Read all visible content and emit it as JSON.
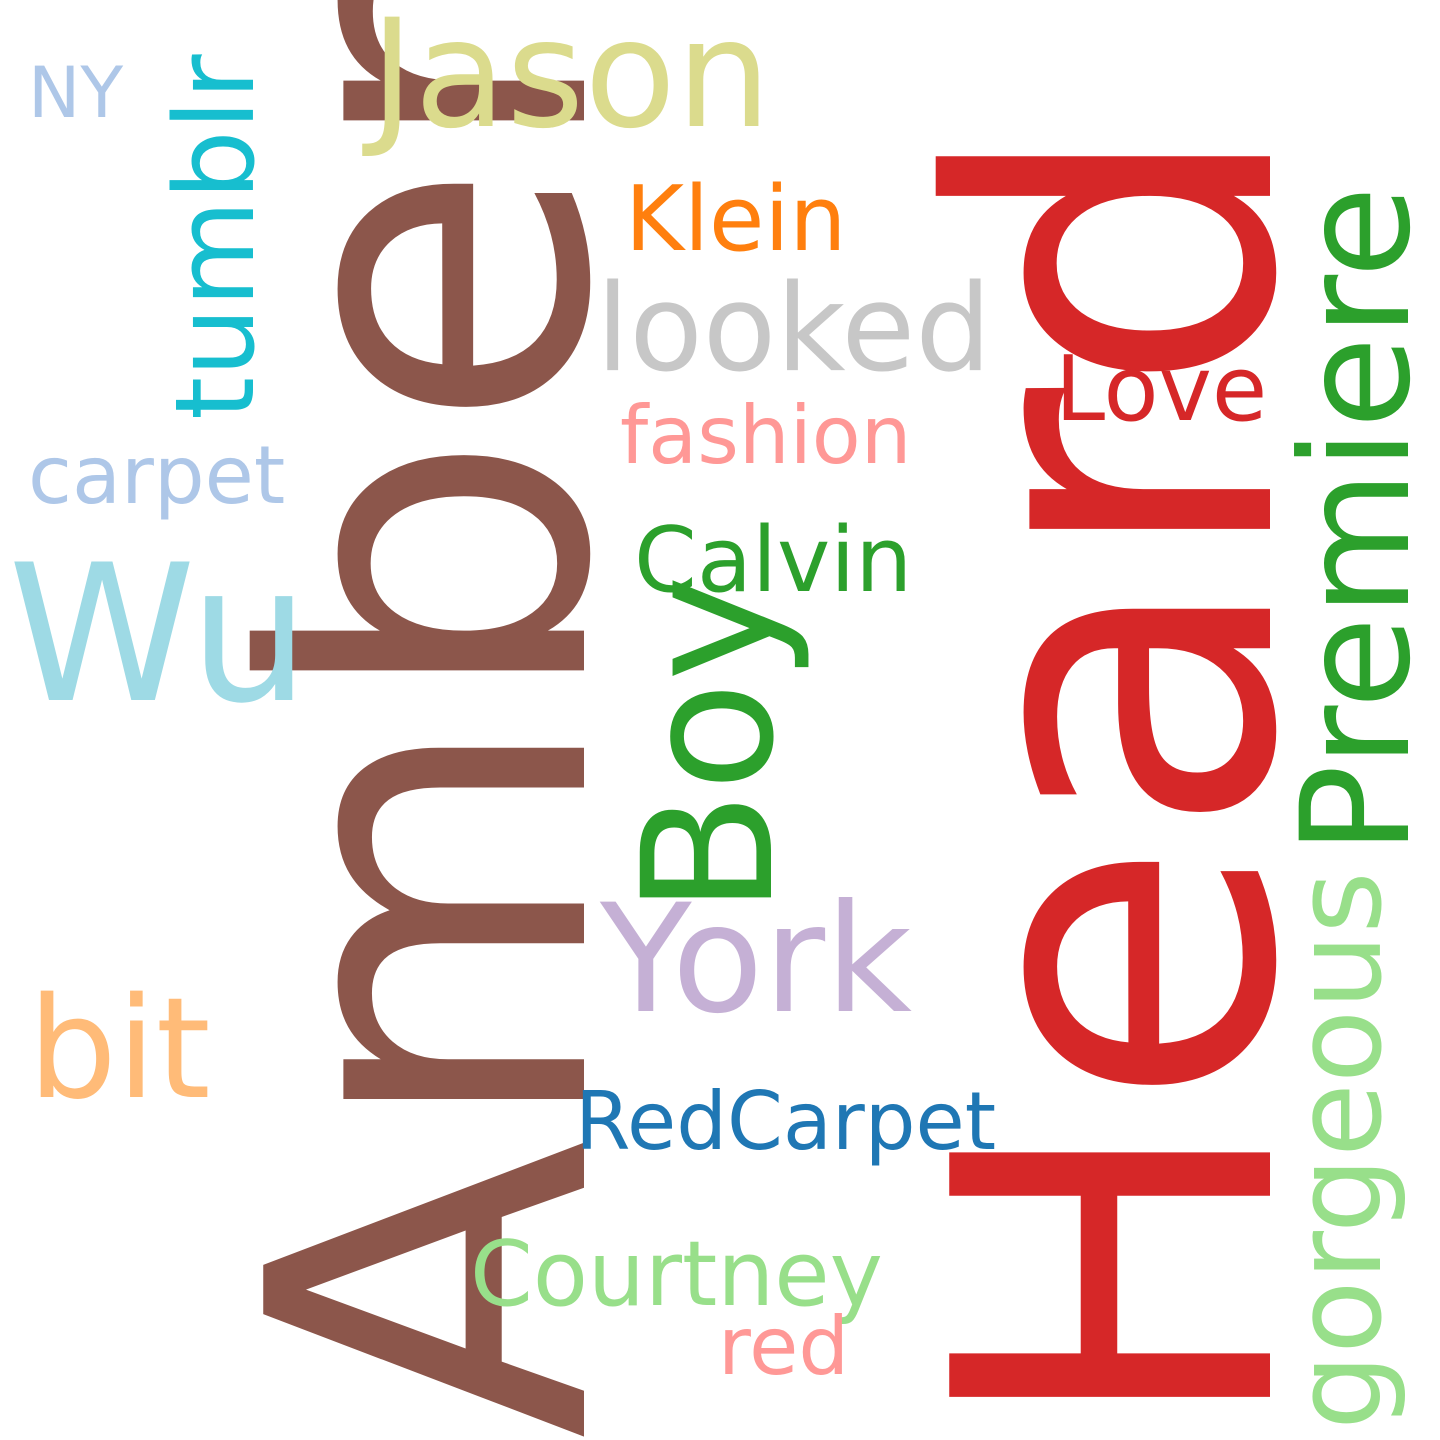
{
  "words": {
    "amber": {
      "text": "Amber",
      "color": "#8c564b"
    },
    "heard": {
      "text": "Heard",
      "color": "#d62728"
    },
    "jason": {
      "text": "Jason",
      "color": "#dbdb8d"
    },
    "premiere": {
      "text": "Premiere",
      "color": "#2ca02c"
    },
    "boy": {
      "text": "Boy",
      "color": "#2ca02c"
    },
    "york": {
      "text": "York",
      "color": "#c5b0d5"
    },
    "wu": {
      "text": "Wu",
      "color": "#9edae5"
    },
    "bit": {
      "text": "bit",
      "color": "#ffbb78"
    },
    "tumblr": {
      "text": "tumblr",
      "color": "#17becf"
    },
    "looked": {
      "text": "looked",
      "color": "#c7c7c7"
    },
    "gorgeous": {
      "text": "gorgeous",
      "color": "#98df8a"
    },
    "courtney": {
      "text": "Courtney",
      "color": "#98df8a"
    },
    "calvin": {
      "text": "Calvin",
      "color": "#2ca02c"
    },
    "klein": {
      "text": "Klein",
      "color": "#ff7f0e"
    },
    "love": {
      "text": "Love",
      "color": "#d62728"
    },
    "redcarpet": {
      "text": "RedCarpet",
      "color": "#1f77b4"
    },
    "fashion": {
      "text": "fashion",
      "color": "#ff9896"
    },
    "carpet": {
      "text": "carpet",
      "color": "#aec7e8"
    },
    "red": {
      "text": "red",
      "color": "#ff9896"
    },
    "ny": {
      "text": "NY",
      "color": "#aec7e8"
    }
  }
}
